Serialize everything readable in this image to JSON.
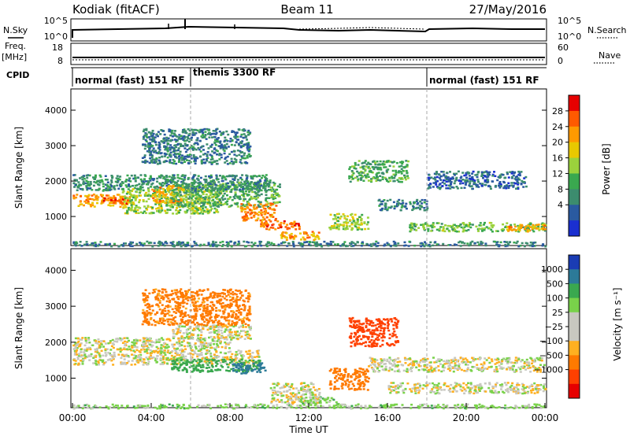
{
  "header": {
    "station": "Kodiak (fitACF)",
    "beam": "Beam 11",
    "date": "27/May/2016"
  },
  "left_labels": {
    "nsky": "N.Sky",
    "freq": "Freq.",
    "mhz": "[MHz]",
    "cpid": "CPID"
  },
  "right_labels": {
    "nsearch": "N.Search",
    "nave": "Nave"
  },
  "noise_panel": {
    "left_ticks": [
      "10^5",
      "10^0"
    ],
    "right_ticks": [
      "10^5",
      "10^0"
    ]
  },
  "freq_panel": {
    "left_ticks": [
      "18",
      "8"
    ],
    "right_ticks": [
      "60",
      "0"
    ]
  },
  "cpid_segments": [
    {
      "label": "normal (fast) 151 RF",
      "start_hour": 0,
      "end_hour": 6
    },
    {
      "label": "themis 3300 RF",
      "start_hour": 6,
      "end_hour": 18
    },
    {
      "label": "normal (fast) 151 RF",
      "start_hour": 18,
      "end_hour": 24
    }
  ],
  "time_axis": {
    "label": "Time UT",
    "ticks": [
      "00:00",
      "04:00",
      "08:00",
      "12:00",
      "16:00",
      "20:00",
      "00:00"
    ]
  },
  "power_panel": {
    "ylabel": "Slant Range [km]",
    "yticks": [
      "4000",
      "3000",
      "2000",
      "1000"
    ],
    "cbar_label": "Power [dB]",
    "cbar_ticks": [
      "28",
      "24",
      "20",
      "16",
      "12",
      "8",
      "4"
    ],
    "cbar_colors": [
      "#e60000",
      "#ff5a00",
      "#ff9a00",
      "#e8c800",
      "#9bd23c",
      "#3aa84f",
      "#3c8c6e",
      "#2a5aa0",
      "#1a2fd0"
    ]
  },
  "velocity_panel": {
    "ylabel": "Slant Range [km]",
    "yticks": [
      "4000",
      "3000",
      "2000",
      "1000"
    ],
    "cbar_label": "Velocity [m s⁻¹]",
    "cbar_ticks": [
      "1000",
      "500",
      "100",
      "25",
      "−25",
      "−100",
      "−500",
      "−1000"
    ],
    "cbar_colors": [
      "#1a3cb4",
      "#2c7a98",
      "#3aa84f",
      "#79d24a",
      "#c8c8c0",
      "#c8c8c0",
      "#ffb020",
      "#ff7a00",
      "#ff4000",
      "#e60000"
    ]
  },
  "chart_data": {
    "type": "heatmap",
    "x_range_hours": [
      0,
      24
    ],
    "y_range_km": [
      180,
      4600
    ],
    "power_blobs": [
      {
        "t0": 0.0,
        "t1": 3.0,
        "r0": 1300,
        "r1": 1650,
        "db": 22
      },
      {
        "t0": 1.5,
        "t1": 2.8,
        "r0": 1380,
        "r1": 1580,
        "db": 26
      },
      {
        "t0": 0.0,
        "t1": 6.0,
        "r0": 1750,
        "r1": 2200,
        "db": 10
      },
      {
        "t0": 2.5,
        "t1": 7.5,
        "r0": 1100,
        "r1": 1800,
        "db": 16
      },
      {
        "t0": 4.0,
        "t1": 5.5,
        "r0": 1400,
        "r1": 1900,
        "db": 22
      },
      {
        "t0": 5.0,
        "t1": 10.5,
        "r0": 1300,
        "r1": 2000,
        "db": 12
      },
      {
        "t0": 6.0,
        "t1": 10.0,
        "r0": 1750,
        "r1": 2200,
        "db": 9
      },
      {
        "t0": 8.5,
        "t1": 10.3,
        "r0": 900,
        "r1": 1400,
        "db": 24
      },
      {
        "t0": 9.5,
        "t1": 11.5,
        "r0": 650,
        "r1": 900,
        "db": 26
      },
      {
        "t0": 10.5,
        "t1": 12.5,
        "r0": 350,
        "r1": 600,
        "db": 22
      },
      {
        "t0": 3.5,
        "t1": 9.0,
        "r0": 2500,
        "r1": 3500,
        "db": 8
      },
      {
        "t0": 13.0,
        "t1": 15.0,
        "r0": 650,
        "r1": 1100,
        "db": 16
      },
      {
        "t0": 14.0,
        "t1": 17.0,
        "r0": 2000,
        "r1": 2600,
        "db": 12
      },
      {
        "t0": 15.5,
        "t1": 18.0,
        "r0": 1200,
        "r1": 1500,
        "db": 8
      },
      {
        "t0": 17.0,
        "t1": 24.0,
        "r0": 600,
        "r1": 850,
        "db": 14
      },
      {
        "t0": 22.0,
        "t1": 24.0,
        "r0": 600,
        "r1": 800,
        "db": 22
      },
      {
        "t0": 18.0,
        "t1": 23.0,
        "r0": 1800,
        "r1": 2300,
        "db": 6
      },
      {
        "t0": 0.0,
        "t1": 24.0,
        "r0": 180,
        "r1": 320,
        "db": 8
      }
    ],
    "velocity_blobs": [
      {
        "t0": 0.0,
        "t1": 9.5,
        "r0": 1400,
        "r1": 1800,
        "v": 0
      },
      {
        "t0": 0.0,
        "t1": 8.0,
        "r0": 1800,
        "r1": 2150,
        "v": 0
      },
      {
        "t0": 5.0,
        "t1": 9.0,
        "r0": 2100,
        "r1": 2500,
        "v": 0
      },
      {
        "t0": 5.0,
        "t1": 9.5,
        "r0": 1200,
        "r1": 1550,
        "v": 300
      },
      {
        "t0": 8.0,
        "t1": 9.8,
        "r0": 1150,
        "r1": 1450,
        "v": 700
      },
      {
        "t0": 10.0,
        "t1": 12.5,
        "r0": 300,
        "r1": 900,
        "v": 0
      },
      {
        "t0": 11.5,
        "t1": 13.5,
        "r0": 300,
        "r1": 500,
        "v": 60
      },
      {
        "t0": 13.0,
        "t1": 15.0,
        "r0": 700,
        "r1": 1300,
        "v": -300
      },
      {
        "t0": 14.0,
        "t1": 16.5,
        "r0": 1900,
        "r1": 2700,
        "v": -600
      },
      {
        "t0": 15.0,
        "t1": 24.0,
        "r0": 1200,
        "r1": 1600,
        "v": 0
      },
      {
        "t0": 16.0,
        "t1": 24.0,
        "r0": 600,
        "r1": 900,
        "v": 0
      },
      {
        "t0": 3.5,
        "t1": 9.0,
        "r0": 2500,
        "r1": 3500,
        "v": -150
      },
      {
        "t0": 0.0,
        "t1": 24.0,
        "r0": 180,
        "r1": 300,
        "v": 50
      }
    ]
  }
}
